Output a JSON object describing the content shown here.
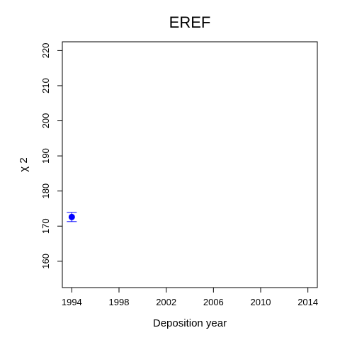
{
  "chart_data": {
    "type": "scatter",
    "title": "EREF",
    "xlabel": "Deposition year",
    "ylabel": "χ 2",
    "xlim": [
      1993.2,
      2014.8
    ],
    "ylim": [
      152.5,
      222.5
    ],
    "xticks": [
      1994,
      1998,
      2002,
      2006,
      2010,
      2014
    ],
    "yticks": [
      160,
      170,
      180,
      190,
      200,
      210,
      220
    ],
    "series": [
      {
        "points": [
          {
            "x": 1994,
            "y": 172.6,
            "err_low": 171.3,
            "err_high": 173.9
          }
        ],
        "color": "#0000ff"
      }
    ],
    "grid": false
  }
}
